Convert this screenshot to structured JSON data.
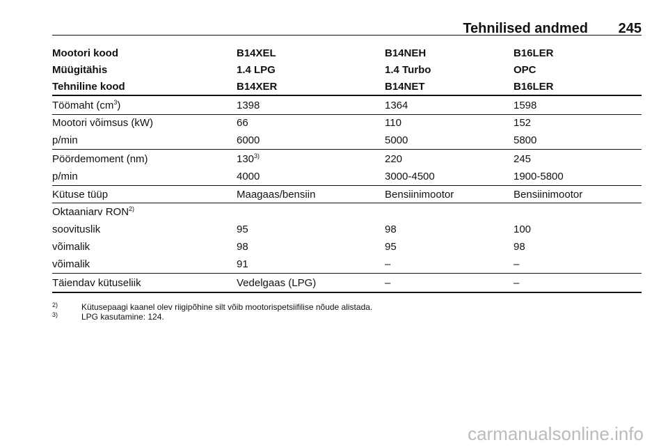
{
  "header": {
    "title": "Tehnilised andmed",
    "page": "245"
  },
  "table": {
    "head": [
      [
        "Mootori kood",
        "B14XEL",
        "B14NEH",
        "B16LER"
      ],
      [
        "Müügitähis",
        "1.4 LPG",
        "1.4 Turbo",
        "OPC"
      ],
      [
        "Tehniline kood",
        "B14XER",
        "B14NET",
        "B16LER"
      ]
    ],
    "rows": [
      [
        {
          "text": "Töömaht (cm",
          "sup": "3",
          "after": ")"
        },
        "1398",
        "1364",
        "1598"
      ],
      [
        "Mootori võimsus (kW)",
        "66",
        "110",
        "152"
      ],
      [
        "p/min",
        "6000",
        "5000",
        "5800"
      ],
      [
        "Pöördemoment (nm)",
        {
          "text": "130",
          "sup": "3)"
        },
        "220",
        "245"
      ],
      [
        "p/min",
        "4000",
        "3000-4500",
        "1900-5800"
      ],
      [
        "Kütuse tüüp",
        "Maagaas/bensiin",
        "Bensiinimootor",
        "Bensiinimootor"
      ],
      [
        {
          "text": "Oktaaniarv RON",
          "sup": "2)"
        }
      ],
      [
        "soovituslik",
        "95",
        "98",
        "100"
      ],
      [
        "võimalik",
        "98",
        "95",
        "98"
      ],
      [
        "võimalik",
        "91",
        "–",
        "–"
      ],
      [
        "Täiendav kütuseliik",
        "Vedelgaas (LPG)",
        "–",
        "–"
      ]
    ]
  },
  "footnotes": [
    {
      "mark": "2)",
      "text": "Kütusepaagi kaanel olev riigipõhine silt võib mootorispetsiifilise nõude alistada."
    },
    {
      "mark": "3)",
      "text": "LPG kasutamine: 124."
    }
  ],
  "watermark": "carmanualsonline.info"
}
